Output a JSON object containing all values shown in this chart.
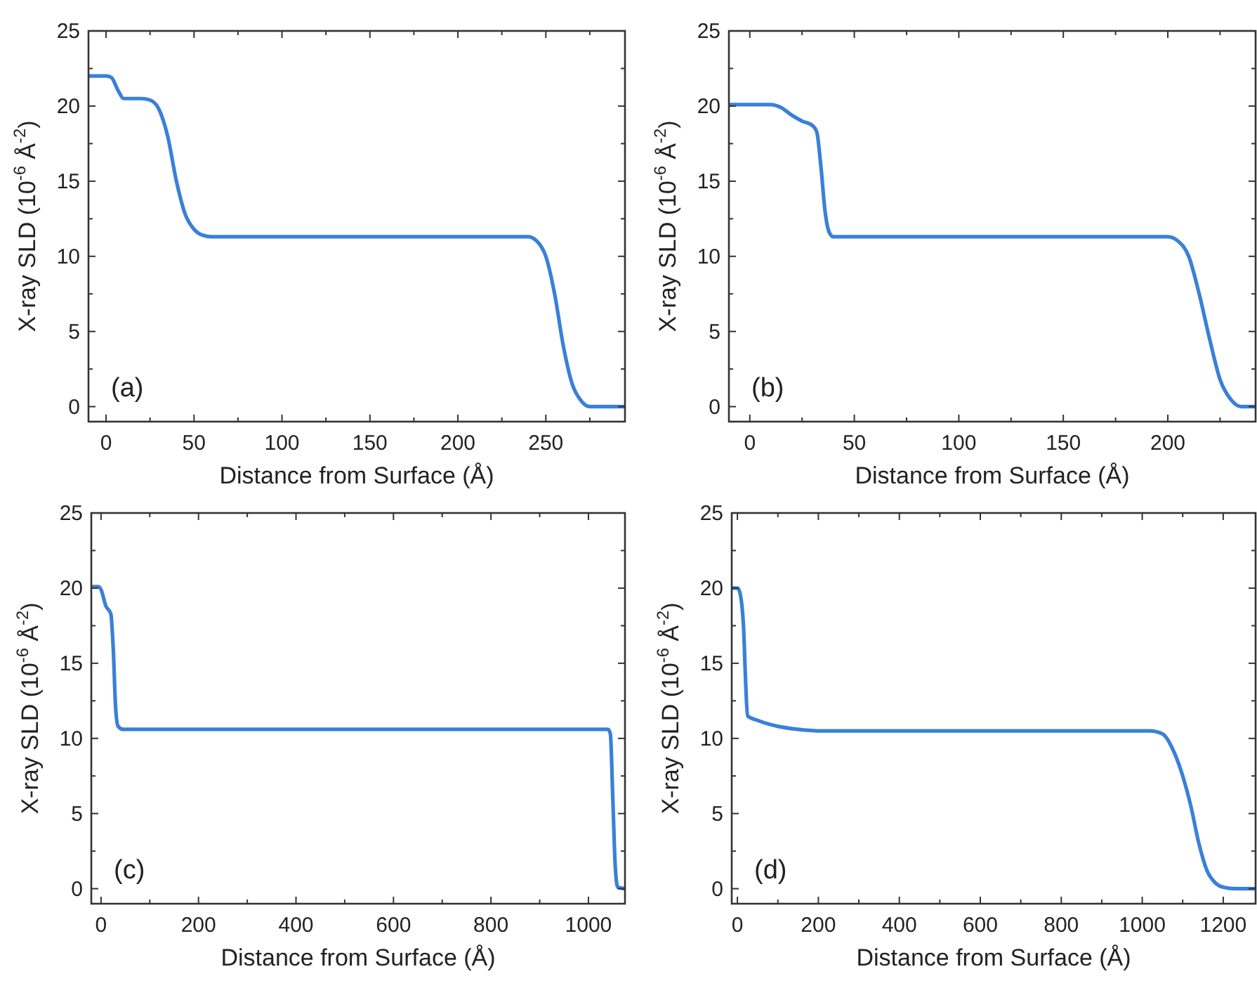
{
  "chart_data": [
    {
      "type": "line",
      "xlabel": "Distance from Surface (Å)",
      "ylabel": "X-ray SLD (10$^{-6}$ Å$^{-2}$)",
      "annotations": [
        "(a)"
      ],
      "grid": false,
      "marker": "none",
      "line_style": "solid",
      "xlim": [
        -10,
        295
      ],
      "ylim": [
        -1,
        25
      ],
      "xticks": [
        0,
        {
          "value": 25,
          "label": null
        },
        50,
        {
          "value": 75,
          "label": null
        },
        100,
        {
          "value": 125,
          "label": null
        },
        150,
        {
          "value": 175,
          "label": null
        },
        200,
        {
          "value": 225,
          "label": null
        },
        250,
        {
          "value": 275,
          "label": null
        }
      ],
      "yticks": [
        0,
        {
          "value": 2.5,
          "label": null
        },
        5,
        {
          "value": 7.5,
          "label": null
        },
        10,
        {
          "value": 12.5,
          "label": null
        },
        15,
        {
          "value": 17.5,
          "label": null
        },
        20,
        {
          "value": 22.5,
          "label": null
        },
        25
      ],
      "series": [
        {
          "color": "#3a80d8",
          "x": [
            -10,
            0,
            3,
            7,
            10,
            20,
            25,
            30,
            35,
            40,
            45,
            50,
            55,
            60,
            240,
            245,
            250,
            255,
            260,
            265,
            270,
            275,
            280,
            295
          ],
          "values": [
            22,
            22,
            21.9,
            21,
            20.5,
            20.5,
            20.4,
            19.8,
            18,
            15,
            12.8,
            11.8,
            11.4,
            11.3,
            11.3,
            11,
            10,
            7.5,
            4,
            1.5,
            0.4,
            0,
            0,
            0
          ]
        }
      ]
    },
    {
      "type": "line",
      "xlabel": "Distance from Surface (Å)",
      "ylabel": "X-ray SLD (10$^{-6}$ Å$^{-2}$)",
      "annotations": [
        "(b)"
      ],
      "grid": false,
      "marker": "none",
      "line_style": "solid",
      "xlim": [
        -10,
        242
      ],
      "ylim": [
        -1,
        25
      ],
      "xticks": [
        0,
        {
          "value": 25,
          "label": null
        },
        50,
        {
          "value": 75,
          "label": null
        },
        100,
        {
          "value": 125,
          "label": null
        },
        150,
        {
          "value": 175,
          "label": null
        },
        200,
        {
          "value": 225,
          "label": null
        }
      ],
      "yticks": [
        0,
        {
          "value": 2.5,
          "label": null
        },
        5,
        {
          "value": 7.5,
          "label": null
        },
        10,
        {
          "value": 12.5,
          "label": null
        },
        15,
        {
          "value": 17.5,
          "label": null
        },
        20,
        {
          "value": 22.5,
          "label": null
        },
        25
      ],
      "series": [
        {
          "color": "#3a80d8",
          "x": [
            -10,
            10,
            15,
            20,
            25,
            30,
            32,
            34,
            36,
            38,
            40,
            200,
            205,
            210,
            215,
            220,
            225,
            230,
            235,
            240,
            242
          ],
          "values": [
            20.1,
            20.1,
            19.9,
            19.4,
            19,
            18.7,
            18.3,
            16,
            13,
            11.6,
            11.3,
            11.3,
            11,
            10,
            7.5,
            4.5,
            1.8,
            0.5,
            0,
            0,
            0
          ]
        }
      ]
    },
    {
      "type": "line",
      "xlabel": "Distance from Surface (Å)",
      "ylabel": "X-ray SLD (10$^{-6}$ Å$^{-2}$)",
      "annotations": [
        "(c)"
      ],
      "grid": false,
      "marker": "none",
      "line_style": "solid",
      "xlim": [
        -20,
        1075
      ],
      "ylim": [
        -1,
        25
      ],
      "xticks": [
        0,
        {
          "value": 100,
          "label": null
        },
        200,
        {
          "value": 300,
          "label": null
        },
        400,
        {
          "value": 500,
          "label": null
        },
        600,
        {
          "value": 700,
          "label": null
        },
        800,
        {
          "value": 900,
          "label": null
        },
        1000
      ],
      "yticks": [
        0,
        {
          "value": 2.5,
          "label": null
        },
        5,
        {
          "value": 7.5,
          "label": null
        },
        10,
        {
          "value": 12.5,
          "label": null
        },
        15,
        {
          "value": 17.5,
          "label": null
        },
        20,
        {
          "value": 22.5,
          "label": null
        },
        25
      ],
      "series": [
        {
          "color": "#3a80d8",
          "x": [
            -20,
            -5,
            0,
            10,
            20,
            25,
            30,
            35,
            45,
            1040,
            1045,
            1050,
            1055,
            1060,
            1075
          ],
          "values": [
            20.1,
            20.1,
            19.9,
            18.8,
            18.3,
            16,
            12,
            10.8,
            10.6,
            10.6,
            10.3,
            6,
            1.5,
            0.1,
            0
          ]
        }
      ]
    },
    {
      "type": "line",
      "xlabel": "Distance from Surface (Å)",
      "ylabel": "X-ray SLD (10$^{-6}$ Å$^{-2}$)",
      "annotations": [
        "(d)"
      ],
      "grid": false,
      "marker": "none",
      "line_style": "solid",
      "xlim": [
        -14,
        1280
      ],
      "ylim": [
        -1,
        25
      ],
      "xticks": [
        0,
        {
          "value": 100,
          "label": null
        },
        200,
        {
          "value": 300,
          "label": null
        },
        400,
        {
          "value": 500,
          "label": null
        },
        600,
        {
          "value": 700,
          "label": null
        },
        800,
        {
          "value": 900,
          "label": null
        },
        1000,
        {
          "value": 1100,
          "label": null
        },
        1200
      ],
      "yticks": [
        0,
        {
          "value": 2.5,
          "label": null
        },
        5,
        {
          "value": 7.5,
          "label": null
        },
        10,
        {
          "value": 12.5,
          "label": null
        },
        15,
        {
          "value": 17.5,
          "label": null
        },
        20,
        {
          "value": 22.5,
          "label": null
        },
        25
      ],
      "series": [
        {
          "color": "#3a80d8",
          "x": [
            -14,
            0,
            5,
            15,
            20,
            25,
            50,
            100,
            150,
            200,
            1020,
            1050,
            1080,
            1100,
            1120,
            1140,
            1160,
            1180,
            1200,
            1230,
            1280
          ],
          "values": [
            20,
            20,
            19.8,
            17.5,
            14,
            11.5,
            11.2,
            10.8,
            10.6,
            10.5,
            10.5,
            10.3,
            9,
            7.5,
            5.5,
            3,
            1.2,
            0.4,
            0.1,
            0,
            0
          ]
        }
      ]
    }
  ]
}
